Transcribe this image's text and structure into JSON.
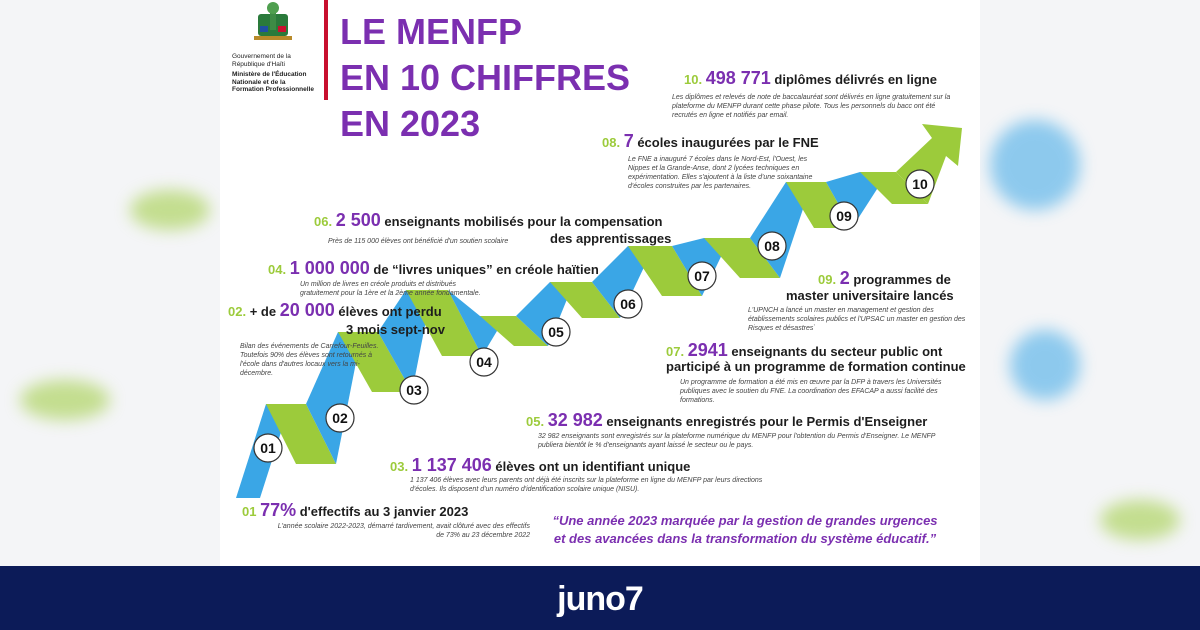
{
  "header": {
    "gov_line1": "Gouvernement de la",
    "gov_line2": "République d'Haïti",
    "ministry_line1": "Ministère de l'Éducation",
    "ministry_line2": "Nationale et de la",
    "ministry_line3": "Formation Professionnelle",
    "title_line1": "LE MENFP",
    "title_line2": "EN 10 CHIFFRES",
    "title_line3": "EN 2023"
  },
  "stair_labels": [
    "01",
    "02",
    "03",
    "04",
    "05",
    "06",
    "07",
    "08",
    "09",
    "10"
  ],
  "items": {
    "i01": {
      "num": "01",
      "big": "77%",
      "rest": " d'effectifs au 3 janvier 2023",
      "desc": "L'année scolaire 2022-2023, démarré tardivement, avait clôturé avec des effectifs de 73% au 23 décembre 2022"
    },
    "i02": {
      "num": "02.",
      "pre": " + de ",
      "big": "20 000",
      "rest": " élèves ont perdu",
      "rest2": "3 mois sept-nov",
      "desc": "Bilan des événements de Carrefour-Feuilles. Toutefois 90% des élèves sont retournés à l'école dans d'autres locaux vers la mi-décembre."
    },
    "i03": {
      "num": "03.",
      "big": "1 137 406",
      "rest": " élèves ont un identifiant unique",
      "desc": "1 137 406 élèves avec leurs parents ont déjà été inscrits sur la plateforme en ligne du MENFP par leurs directions d'écoles. Ils disposent d'un numéro d'identification scolaire unique (NISU)."
    },
    "i04": {
      "num": "04.",
      "big": "1 000 000",
      "rest": " de “livres uniques” en créole haïtien",
      "desc": "Un million de livres en créole produits et distribués gratuitement pour la 1ère et la 2ème année fondamentale."
    },
    "i05": {
      "num": "05.",
      "big": "32 982",
      "rest": " enseignants  enregistrés pour le Permis d'Enseigner",
      "desc": "32 982 enseignants sont enregistrés sur la plateforme numérique du MENFP pour l'obtention du Permis d'Enseigner. Le MENFP publiera bientôt le % d'enseignants ayant laissé le secteur ou le pays."
    },
    "i06": {
      "num": "06.",
      "big": "2 500",
      "rest": " enseignants mobilisés pour la compensation",
      "rest2": "des apprentissages",
      "desc": "Près de 115 000 élèves ont bénéficié d'un soutien scolaire"
    },
    "i07": {
      "num": "07.",
      "big": "2941",
      "rest": " enseignants du secteur public ont",
      "rest2": "participé à un programme de formation continue",
      "desc": "Un programme de formation a été mis en œuvre par la DFP à travers les Universités publiques avec le soutien du FNE. La coordination des EFACAP a aussi facilité des formations."
    },
    "i08": {
      "num": "08.",
      "big": "7",
      "rest": " écoles inaugurées par le FNE",
      "desc": "Le FNE a inauguré 7 écoles dans le Nord-Est, l'Ouest, les Nippes et la Grande-Anse, dont 2 lycées techniques en expérimentation. Elles s'ajoutent à la liste d'une soixantaine d'écoles construites par les partenaires."
    },
    "i09": {
      "num": "09.",
      "big": "2",
      "rest": " programmes de",
      "rest2": "master universitaire lancés",
      "desc": "L'UPNCH a lancé un master en management et gestion des établissements scolaires publics et l'UPSAC un master en gestion des Risques et désastres`"
    },
    "i10": {
      "num": "10.",
      "big": "498 771",
      "rest": " diplômes délivrés en ligne",
      "desc": "Les diplômes et relevés de note de baccalauréat sont délivrés en ligne gratuitement sur la plateforme du MENFP durant cette phase pilote. Tous les personnels du bacc ont été recrutés en ligne et notifiés par email."
    }
  },
  "quote": {
    "line1": "“Une année 2023 marquée par la gestion de grandes urgences",
    "line2": "et des avancées dans la transformation du système éducatif.”"
  },
  "footer": {
    "brand": "juno7"
  },
  "colors": {
    "purple": "#7b2fb0",
    "green": "#9ccb3b",
    "blue": "#3aa6e6",
    "navy": "#0c1b58"
  }
}
